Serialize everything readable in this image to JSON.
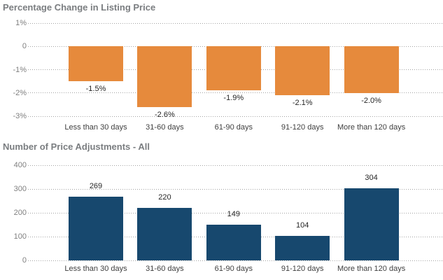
{
  "page": {
    "background_color": "#ffffff",
    "title_color": "#7a7d80",
    "grid_color": "#a3a3a3"
  },
  "chart_data": [
    {
      "type": "bar",
      "title": "Percentage Change in Listing Price",
      "categories": [
        "Less than 30 days",
        "31-60 days",
        "61-90 days",
        "91-120 days",
        "More than 120 days"
      ],
      "values": [
        -1.5,
        -2.6,
        -1.9,
        -2.1,
        -2.0
      ],
      "value_labels": [
        "-1.5%",
        "-2.6%",
        "-1.9%",
        "-2.1%",
        "-2.0%"
      ],
      "ylabel": "",
      "xlabel": "",
      "ylim": [
        -3,
        1
      ],
      "y_ticks": [
        {
          "label": "1%",
          "value": 1
        },
        {
          "label": "0",
          "value": 0
        },
        {
          "label": "-1%",
          "value": -1
        },
        {
          "label": "-2%",
          "value": -2
        },
        {
          "label": "-3%",
          "value": -3
        }
      ],
      "grid": "horizontal-dotted",
      "legend": "none",
      "bar_color": "#E68A3C"
    },
    {
      "type": "bar",
      "title": "Number of Price Adjustments - All",
      "categories": [
        "Less than 30 days",
        "31-60 days",
        "61-90 days",
        "91-120 days",
        "More than 120 days"
      ],
      "values": [
        269,
        220,
        149,
        104,
        304
      ],
      "value_labels": [
        "269",
        "220",
        "149",
        "104",
        "304"
      ],
      "ylabel": "",
      "xlabel": "",
      "ylim": [
        0,
        400
      ],
      "y_ticks": [
        {
          "label": "400",
          "value": 400
        },
        {
          "label": "300",
          "value": 300
        },
        {
          "label": "200",
          "value": 200
        },
        {
          "label": "100",
          "value": 100
        },
        {
          "label": "0",
          "value": 0
        }
      ],
      "grid": "horizontal-dotted",
      "legend": "none",
      "bar_color": "#17486E"
    }
  ]
}
